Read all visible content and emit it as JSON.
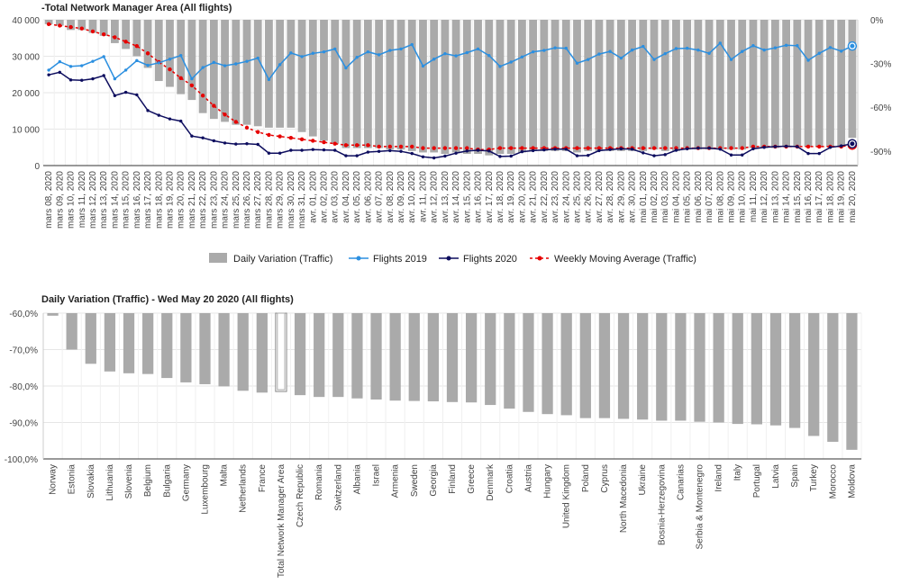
{
  "chart_data": [
    {
      "type": "bar+line",
      "title": "-Total Network Manager Area (All flights)",
      "categories": [
        "mars 08, 2020",
        "mars 09, 2020",
        "mars 10, 2020",
        "mars 11, 2020",
        "mars 12, 2020",
        "mars 13, 2020",
        "mars 14, 2020",
        "mars 15, 2020",
        "mars 16, 2020",
        "mars 17, 2020",
        "mars 18, 2020",
        "mars 19, 2020",
        "mars 20, 2020",
        "mars 21, 2020",
        "mars 22, 2020",
        "mars 23, 2020",
        "mars 24, 2020",
        "mars 25, 2020",
        "mars 26, 2020",
        "mars 27, 2020",
        "mars 28, 2020",
        "mars 29, 2020",
        "mars 30, 2020",
        "mars 31, 2020",
        "avr. 01, 2020",
        "avr. 02, 2020",
        "avr. 03, 2020",
        "avr. 04, 2020",
        "avr. 05, 2020",
        "avr. 06, 2020",
        "avr. 07, 2020",
        "avr. 08, 2020",
        "avr. 09, 2020",
        "avr. 10, 2020",
        "avr. 11, 2020",
        "avr. 12, 2020",
        "avr. 13, 2020",
        "avr. 14, 2020",
        "avr. 15, 2020",
        "avr. 16, 2020",
        "avr. 17, 2020",
        "avr. 18, 2020",
        "avr. 19, 2020",
        "avr. 20, 2020",
        "avr. 21, 2020",
        "avr. 22, 2020",
        "avr. 23, 2020",
        "avr. 24, 2020",
        "avr. 25, 2020",
        "avr. 26, 2020",
        "avr. 27, 2020",
        "avr. 28, 2020",
        "avr. 29, 2020",
        "avr. 30, 2020",
        "mai 01, 2020",
        "mai 02, 2020",
        "mai 03, 2020",
        "mai 04, 2020",
        "mai 05, 2020",
        "mai 06, 2020",
        "mai 07, 2020",
        "mai 08, 2020",
        "mai 09, 2020",
        "mai 10, 2020",
        "mai 11, 2020",
        "mai 12, 2020",
        "mai 13, 2020",
        "mai 14, 2020",
        "mai 15, 2020",
        "mai 16, 2020",
        "mai 17, 2020",
        "mai 18, 2020",
        "mai 19, 2020",
        "mai 20, 2020"
      ],
      "left_axis": {
        "ticks": [
          "0",
          "10 000",
          "20 000",
          "30 000",
          "40 000"
        ],
        "min": 0,
        "max": 40000
      },
      "right_axis": {
        "ticks": [
          "0%",
          "-30%",
          "-60%",
          "-90%"
        ],
        "min": -100,
        "max": 0
      },
      "legend_position": "bottom",
      "series": [
        {
          "name": "Daily Variation (Traffic)",
          "kind": "bar",
          "axis": "right",
          "color": "#aaaaaa",
          "values": [
            -3,
            -4,
            -7,
            -7,
            -9,
            -11,
            -16,
            -20,
            -25,
            -33,
            -42,
            -46,
            -51,
            -55,
            -64,
            -68,
            -70,
            -72,
            -72,
            -73,
            -74,
            -74,
            -74,
            -77,
            -80,
            -83,
            -85,
            -88,
            -88,
            -88,
            -88,
            -89,
            -89,
            -90,
            -91,
            -91,
            -92,
            -91,
            -92,
            -92,
            -93,
            -92,
            -92,
            -91,
            -90,
            -90,
            -90,
            -90,
            -91,
            -90,
            -90,
            -90,
            -90,
            -90,
            -90,
            -89,
            -90,
            -90,
            -89,
            -89,
            -89,
            -89,
            -89,
            -89,
            -88,
            -88,
            -88,
            -87,
            -87,
            -87,
            -87,
            -87,
            -87,
            -81
          ]
        },
        {
          "name": "Flights 2019",
          "kind": "line",
          "axis": "left",
          "color": "#2b8fe0",
          "values": [
            26200,
            28500,
            27200,
            27400,
            28600,
            29900,
            23800,
            26200,
            28800,
            27500,
            28200,
            29200,
            30200,
            23800,
            26900,
            28300,
            27400,
            27900,
            28600,
            29500,
            23600,
            27700,
            30900,
            29900,
            30800,
            31200,
            32000,
            26800,
            29700,
            31200,
            30400,
            31600,
            32000,
            33200,
            27300,
            29200,
            30700,
            30100,
            31000,
            32000,
            30200,
            27200,
            28400,
            29800,
            31200,
            31600,
            32300,
            32200,
            28100,
            29100,
            30600,
            31300,
            29500,
            31700,
            32700,
            29100,
            30700,
            32100,
            32200,
            31700,
            30800,
            33600,
            29100,
            31300,
            32900,
            31700,
            32300,
            33000,
            32900,
            28900,
            30800,
            32400,
            31400,
            32800
          ]
        },
        {
          "name": "Flights 2020",
          "kind": "line",
          "axis": "left",
          "color": "#0d0d5e",
          "values": [
            24900,
            25600,
            23500,
            23400,
            23800,
            24700,
            19200,
            20100,
            19400,
            15100,
            13800,
            12800,
            12200,
            8100,
            7600,
            6800,
            6200,
            5900,
            6000,
            5800,
            3400,
            3400,
            4200,
            4200,
            4400,
            4300,
            4200,
            2700,
            2700,
            3700,
            3900,
            4100,
            3900,
            3300,
            2400,
            2100,
            2600,
            3400,
            4000,
            4200,
            4000,
            2500,
            2600,
            3800,
            4100,
            4300,
            4500,
            4500,
            2700,
            2800,
            4100,
            4400,
            4600,
            4500,
            3500,
            2700,
            3000,
            4200,
            4600,
            4800,
            4800,
            4500,
            2900,
            2900,
            4600,
            5000,
            5200,
            5300,
            5200,
            3300,
            3300,
            5000,
            5400,
            6000
          ]
        },
        {
          "name": "Weekly Moving Average (Traffic)",
          "kind": "dashed-line",
          "axis": "right",
          "color": "#e60000",
          "values": [
            -3,
            -4,
            -5,
            -6,
            -8,
            -10,
            -12,
            -15,
            -18,
            -23,
            -29,
            -34,
            -40,
            -45,
            -52,
            -59,
            -65,
            -70,
            -74,
            -77,
            -79,
            -80,
            -81,
            -82,
            -83,
            -84,
            -85,
            -86,
            -86,
            -86,
            -87,
            -87,
            -87,
            -87,
            -88,
            -88,
            -88,
            -88,
            -88,
            -89,
            -89,
            -88,
            -88,
            -88,
            -88,
            -88,
            -88,
            -88,
            -88,
            -88,
            -88,
            -88,
            -88,
            -88,
            -88,
            -88,
            -88,
            -88,
            -88,
            -88,
            -88,
            -88,
            -88,
            -88,
            -87,
            -87,
            -87,
            -87,
            -87,
            -87,
            -87,
            -87,
            -87,
            -86
          ]
        }
      ]
    },
    {
      "type": "bar",
      "title": "Daily Variation (Traffic) - Wed May 20 2020 (All flights)",
      "categories": [
        "Norway",
        "Estonia",
        "Slovakia",
        "Lithuania",
        "Slovenia",
        "Belgium",
        "Bulgaria",
        "Germany",
        "Luxembourg",
        "Malta",
        "Netherlands",
        "France",
        "Total Network Manager Area",
        "Czech Republic",
        "Romania",
        "Switzerland",
        "Albania",
        "Israel",
        "Armenia",
        "Sweden",
        "Georgia",
        "Finland",
        "Greece",
        "Denmark",
        "Croatia",
        "Austria",
        "Hungary",
        "United Kingdom",
        "Poland",
        "Cyprus",
        "North Macedonia",
        "Ukraine",
        "Bosnia-Herzegovina",
        "Canarias",
        "Serbia & Montenegro",
        "Ireland",
        "Italy",
        "Portugal",
        "Latvia",
        "Spain",
        "Turkey",
        "Morocco",
        "Moldova"
      ],
      "values": [
        -60.7,
        -70.0,
        -73.9,
        -76.0,
        -76.5,
        -76.7,
        -77.8,
        -79.0,
        -79.5,
        -80.1,
        -81.3,
        -81.8,
        -81.5,
        -82.5,
        -83.0,
        -83.0,
        -83.4,
        -83.7,
        -84.0,
        -84.1,
        -84.2,
        -84.4,
        -84.5,
        -85.2,
        -86.2,
        -87.1,
        -87.7,
        -88.0,
        -88.8,
        -88.8,
        -89.0,
        -89.2,
        -89.5,
        -89.5,
        -89.8,
        -90.0,
        -90.4,
        -90.5,
        -90.8,
        -91.5,
        -93.7,
        -95.3,
        -97.5
      ],
      "highlight": "Total Network Manager Area",
      "y_axis": {
        "ticks": [
          "-60,0%",
          "-70,0%",
          "-80,0%",
          "-90,0%",
          "-100,0%"
        ],
        "min": -100,
        "max": -60
      },
      "color": "#aaaaaa"
    }
  ]
}
